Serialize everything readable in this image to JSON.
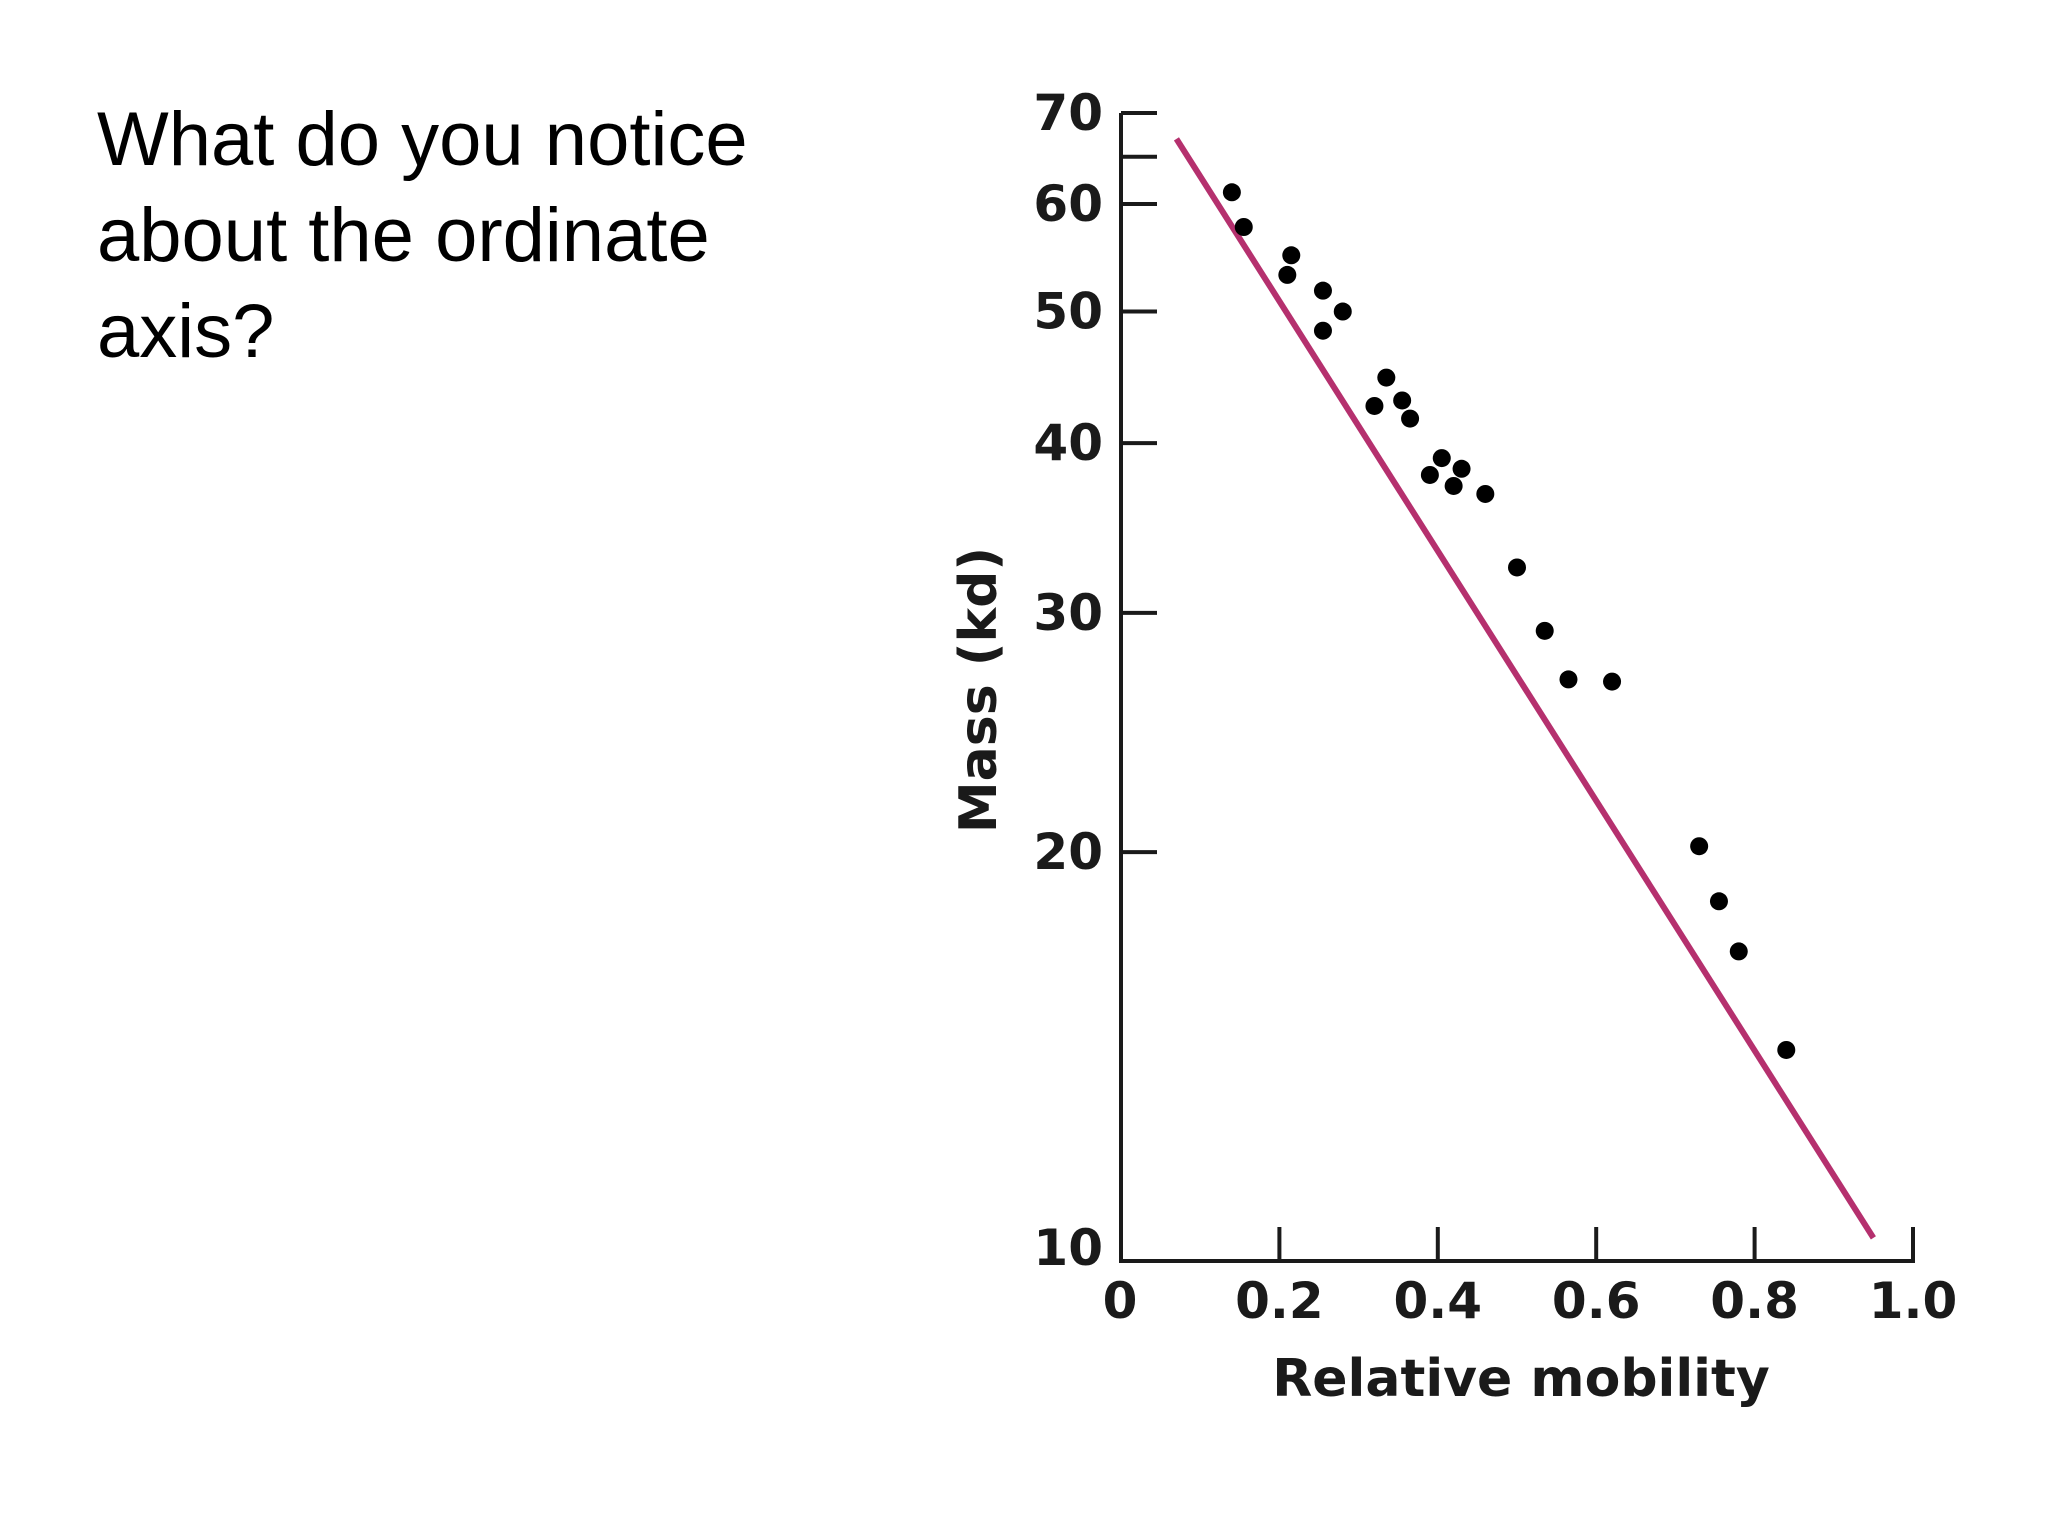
{
  "question": {
    "lines": [
      "What do you notice",
      "about the ordinate",
      "axis?"
    ]
  },
  "chart_data": {
    "type": "scatter",
    "title": "",
    "xlabel": "Relative mobility",
    "ylabel": "Mass (kd)",
    "xlim": [
      0,
      1.0
    ],
    "ylim": [
      10,
      70
    ],
    "yscale": "log",
    "grid": false,
    "x_ticks": [
      {
        "value": 0,
        "label": "0"
      },
      {
        "value": 0.2,
        "label": "0.2"
      },
      {
        "value": 0.4,
        "label": "0.4"
      },
      {
        "value": 0.6,
        "label": "0.6"
      },
      {
        "value": 0.8,
        "label": "0.8"
      },
      {
        "value": 1.0,
        "label": "1.0"
      }
    ],
    "y_ticks": [
      {
        "value": 10,
        "label": "10"
      },
      {
        "value": 20,
        "label": "20"
      },
      {
        "value": 30,
        "label": "30"
      },
      {
        "value": 40,
        "label": "40"
      },
      {
        "value": 50,
        "label": "50"
      },
      {
        "value": 60,
        "label": "60"
      },
      {
        "value": 65,
        "label": ""
      },
      {
        "value": 70,
        "label": "70"
      }
    ],
    "points": [
      {
        "x": 0.14,
        "y": 61.2
      },
      {
        "x": 0.155,
        "y": 57.7
      },
      {
        "x": 0.215,
        "y": 55.0
      },
      {
        "x": 0.21,
        "y": 53.2
      },
      {
        "x": 0.255,
        "y": 51.8
      },
      {
        "x": 0.255,
        "y": 48.4
      },
      {
        "x": 0.28,
        "y": 50.0
      },
      {
        "x": 0.335,
        "y": 44.7
      },
      {
        "x": 0.355,
        "y": 43.0
      },
      {
        "x": 0.32,
        "y": 42.6
      },
      {
        "x": 0.365,
        "y": 41.7
      },
      {
        "x": 0.405,
        "y": 39.0
      },
      {
        "x": 0.39,
        "y": 37.9
      },
      {
        "x": 0.43,
        "y": 38.3
      },
      {
        "x": 0.42,
        "y": 37.2
      },
      {
        "x": 0.46,
        "y": 36.7
      },
      {
        "x": 0.5,
        "y": 32.4
      },
      {
        "x": 0.535,
        "y": 29.1
      },
      {
        "x": 0.565,
        "y": 26.8
      },
      {
        "x": 0.62,
        "y": 26.7
      },
      {
        "x": 0.73,
        "y": 20.2
      },
      {
        "x": 0.755,
        "y": 18.4
      },
      {
        "x": 0.78,
        "y": 16.9
      },
      {
        "x": 0.84,
        "y": 14.3
      }
    ],
    "fit_line": {
      "x": [
        0.07,
        0.95
      ],
      "y": [
        67.0,
        10.4
      ]
    },
    "colors": {
      "fit_line": "#b5306e",
      "points": "#000000",
      "axis": "#1a1a1a"
    }
  }
}
